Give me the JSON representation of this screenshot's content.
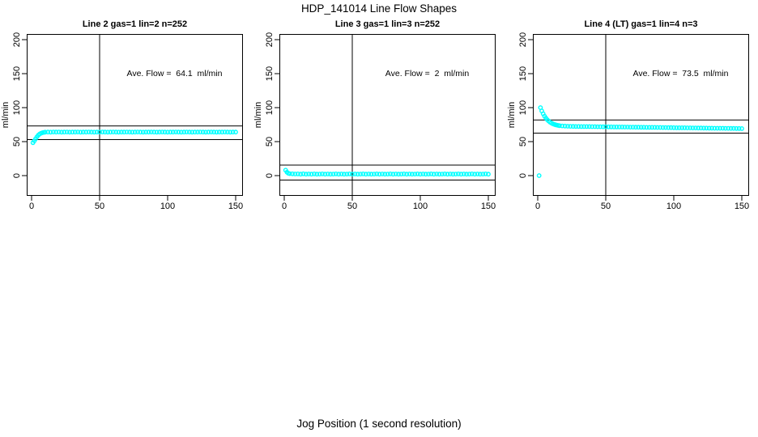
{
  "title": "HDP_141014  Line Flow Shapes",
  "xlabel": "Jog Position (1 second resolution)",
  "point_color": "#00ffff",
  "line_color": "#000000",
  "background_color": "#ffffff",
  "chart_data": [
    {
      "type": "scatter",
      "title": "Line 2 gas=1 lin=2 n=252",
      "annotation": "Ave. Flow =  64.1  ml/min",
      "ave_flow_ml_min": 64.1,
      "n": 252,
      "ylabel": "ml/min",
      "x_ticks": [
        0,
        50,
        100,
        150
      ],
      "y_ticks": [
        0,
        50,
        100,
        150,
        200
      ],
      "xlim": [
        -4,
        155
      ],
      "ylim": [
        -30,
        208
      ],
      "vline_x": 50,
      "ref_lines_y": [
        73,
        53
      ],
      "grid": false,
      "points": [
        [
          1,
          48.5
        ],
        [
          2,
          51.2
        ],
        [
          3,
          54.3
        ],
        [
          4,
          57.2
        ],
        [
          5,
          59.6
        ],
        [
          6,
          61.3
        ],
        [
          7,
          62.4
        ],
        [
          8,
          63.1
        ],
        [
          9,
          63.6
        ],
        [
          10,
          63.9
        ],
        [
          12,
          64.1
        ],
        [
          14,
          63.9
        ],
        [
          16,
          64.2
        ],
        [
          18,
          64.0
        ],
        [
          20,
          64.2
        ],
        [
          22,
          63.9
        ],
        [
          24,
          64.1
        ],
        [
          26,
          64.2
        ],
        [
          28,
          63.9
        ],
        [
          30,
          64.1
        ],
        [
          32,
          64.0
        ],
        [
          34,
          64.2
        ],
        [
          36,
          63.9
        ],
        [
          38,
          64.1
        ],
        [
          40,
          64.0
        ],
        [
          42,
          64.2
        ],
        [
          44,
          64.0
        ],
        [
          46,
          63.9
        ],
        [
          48,
          64.1
        ],
        [
          50,
          64.0
        ],
        [
          52,
          64.2
        ],
        [
          54,
          64.0
        ],
        [
          56,
          63.9
        ],
        [
          58,
          64.1
        ],
        [
          60,
          64.2
        ],
        [
          62,
          64.0
        ],
        [
          64,
          63.9
        ],
        [
          66,
          64.1
        ],
        [
          68,
          64.0
        ],
        [
          70,
          64.2
        ],
        [
          72,
          64.0
        ],
        [
          74,
          63.9
        ],
        [
          76,
          64.1
        ],
        [
          78,
          64.2
        ],
        [
          80,
          64.0
        ],
        [
          82,
          63.9
        ],
        [
          84,
          64.1
        ],
        [
          86,
          64.0
        ],
        [
          88,
          64.2
        ],
        [
          90,
          64.0
        ],
        [
          92,
          63.9
        ],
        [
          94,
          64.1
        ],
        [
          96,
          64.2
        ],
        [
          98,
          64.0
        ],
        [
          100,
          63.9
        ],
        [
          102,
          64.1
        ],
        [
          104,
          64.0
        ],
        [
          106,
          64.2
        ],
        [
          108,
          64.0
        ],
        [
          110,
          63.9
        ],
        [
          112,
          64.1
        ],
        [
          114,
          64.2
        ],
        [
          116,
          64.0
        ],
        [
          118,
          63.9
        ],
        [
          120,
          64.1
        ],
        [
          122,
          64.0
        ],
        [
          124,
          64.2
        ],
        [
          126,
          64.0
        ],
        [
          128,
          63.9
        ],
        [
          130,
          64.1
        ],
        [
          132,
          64.2
        ],
        [
          134,
          64.0
        ],
        [
          136,
          63.9
        ],
        [
          138,
          64.1
        ],
        [
          140,
          64.0
        ],
        [
          142,
          64.2
        ],
        [
          144,
          64.0
        ],
        [
          146,
          63.9
        ],
        [
          148,
          64.1
        ],
        [
          150,
          64.0
        ]
      ]
    },
    {
      "type": "scatter",
      "title": "Line 3 gas=1 lin=3 n=252",
      "annotation": "Ave. Flow =  2  ml/min",
      "ave_flow_ml_min": 2,
      "n": 252,
      "ylabel": "ml/min",
      "x_ticks": [
        0,
        50,
        100,
        150
      ],
      "y_ticks": [
        0,
        50,
        100,
        150,
        200
      ],
      "xlim": [
        -4,
        155
      ],
      "ylim": [
        -30,
        208
      ],
      "vline_x": 50,
      "ref_lines_y": [
        15.5,
        -6.5
      ],
      "grid": false,
      "points": [
        [
          1,
          8
        ],
        [
          2,
          5
        ],
        [
          3,
          3.5
        ],
        [
          4,
          2.9
        ],
        [
          6,
          2.6
        ],
        [
          8,
          2.4
        ],
        [
          10,
          2.5
        ],
        [
          12,
          2.2
        ],
        [
          14,
          2.6
        ],
        [
          16,
          2.1
        ],
        [
          18,
          2.4
        ],
        [
          20,
          2.2
        ],
        [
          22,
          2.5
        ],
        [
          24,
          2.1
        ],
        [
          26,
          2.3
        ],
        [
          28,
          2.5
        ],
        [
          30,
          2.2
        ],
        [
          32,
          2.4
        ],
        [
          34,
          2.1
        ],
        [
          36,
          2.3
        ],
        [
          38,
          2.5
        ],
        [
          40,
          2.2
        ],
        [
          42,
          2.4
        ],
        [
          44,
          2.1
        ],
        [
          46,
          2.3
        ],
        [
          48,
          2.5
        ],
        [
          50,
          2.2
        ],
        [
          52,
          2.4
        ],
        [
          54,
          2.1
        ],
        [
          56,
          2.3
        ],
        [
          58,
          2.5
        ],
        [
          60,
          2.2
        ],
        [
          62,
          2.4
        ],
        [
          64,
          2.1
        ],
        [
          66,
          2.3
        ],
        [
          68,
          2.5
        ],
        [
          70,
          2.2
        ],
        [
          72,
          2.4
        ],
        [
          74,
          2.1
        ],
        [
          76,
          2.3
        ],
        [
          78,
          2.5
        ],
        [
          80,
          2.2
        ],
        [
          82,
          2.4
        ],
        [
          84,
          2.1
        ],
        [
          86,
          2.3
        ],
        [
          88,
          2.5
        ],
        [
          90,
          2.2
        ],
        [
          92,
          2.4
        ],
        [
          94,
          2.1
        ],
        [
          96,
          2.3
        ],
        [
          98,
          2.5
        ],
        [
          100,
          2.2
        ],
        [
          102,
          2.4
        ],
        [
          104,
          2.1
        ],
        [
          106,
          2.3
        ],
        [
          108,
          2.5
        ],
        [
          110,
          2.2
        ],
        [
          112,
          2.4
        ],
        [
          114,
          2.1
        ],
        [
          116,
          2.3
        ],
        [
          118,
          2.5
        ],
        [
          120,
          2.2
        ],
        [
          122,
          2.4
        ],
        [
          124,
          2.1
        ],
        [
          126,
          2.3
        ],
        [
          128,
          2.5
        ],
        [
          130,
          2.2
        ],
        [
          132,
          2.4
        ],
        [
          134,
          2.1
        ],
        [
          136,
          2.3
        ],
        [
          138,
          2.5
        ],
        [
          140,
          2.2
        ],
        [
          142,
          2.4
        ],
        [
          144,
          2.1
        ],
        [
          146,
          2.3
        ],
        [
          148,
          2.5
        ],
        [
          150,
          2.2
        ]
      ]
    },
    {
      "type": "scatter",
      "title": "Line 4 (LT) gas=1 lin=4 n=3",
      "annotation": "Ave. Flow =  73.5  ml/min",
      "ave_flow_ml_min": 73.5,
      "n": 3,
      "ylabel": "ml/min",
      "x_ticks": [
        0,
        50,
        100,
        150
      ],
      "y_ticks": [
        0,
        50,
        100,
        150,
        200
      ],
      "xlim": [
        -4,
        155
      ],
      "ylim": [
        -30,
        208
      ],
      "vline_x": 50,
      "ref_lines_y": [
        81.8,
        62.5
      ],
      "grid": false,
      "points": [
        [
          1,
          0
        ],
        [
          2,
          100
        ],
        [
          3,
          95.1
        ],
        [
          4,
          90.9
        ],
        [
          5,
          87.4
        ],
        [
          6,
          84.6
        ],
        [
          7,
          82.2
        ],
        [
          8,
          80.3
        ],
        [
          9,
          78.7
        ],
        [
          10,
          77.4
        ],
        [
          11,
          76.3
        ],
        [
          12,
          75.5
        ],
        [
          13,
          74.8
        ],
        [
          14,
          74.3
        ],
        [
          15,
          73.8
        ],
        [
          16,
          73.5
        ],
        [
          18,
          73.1
        ],
        [
          20,
          72.8
        ],
        [
          22,
          72.6
        ],
        [
          24,
          72.5
        ],
        [
          26,
          72.4
        ],
        [
          28,
          72.3
        ],
        [
          30,
          72.3
        ],
        [
          32,
          72.2
        ],
        [
          34,
          72.2
        ],
        [
          36,
          72.1
        ],
        [
          38,
          72.1
        ],
        [
          40,
          72.0
        ],
        [
          42,
          72.0
        ],
        [
          44,
          71.9
        ],
        [
          46,
          71.9
        ],
        [
          48,
          71.8
        ],
        [
          50,
          71.8
        ],
        [
          52,
          71.7
        ],
        [
          54,
          71.7
        ],
        [
          56,
          71.6
        ],
        [
          58,
          71.6
        ],
        [
          60,
          71.5
        ],
        [
          62,
          71.5
        ],
        [
          64,
          71.4
        ],
        [
          66,
          71.4
        ],
        [
          68,
          71.3
        ],
        [
          70,
          71.3
        ],
        [
          72,
          71.2
        ],
        [
          74,
          71.2
        ],
        [
          76,
          71.1
        ],
        [
          78,
          71.1
        ],
        [
          80,
          71.0
        ],
        [
          82,
          71.0
        ],
        [
          84,
          70.9
        ],
        [
          86,
          70.9
        ],
        [
          88,
          70.8
        ],
        [
          90,
          70.8
        ],
        [
          92,
          70.7
        ],
        [
          94,
          70.7
        ],
        [
          96,
          70.6
        ],
        [
          98,
          70.6
        ],
        [
          100,
          70.5
        ],
        [
          102,
          70.4
        ],
        [
          104,
          70.4
        ],
        [
          106,
          70.3
        ],
        [
          108,
          70.3
        ],
        [
          110,
          70.2
        ],
        [
          112,
          70.2
        ],
        [
          114,
          70.1
        ],
        [
          116,
          70.1
        ],
        [
          118,
          70.0
        ],
        [
          120,
          70.0
        ],
        [
          122,
          69.9
        ],
        [
          124,
          69.9
        ],
        [
          126,
          69.8
        ],
        [
          128,
          69.8
        ],
        [
          130,
          69.7
        ],
        [
          132,
          69.7
        ],
        [
          134,
          69.6
        ],
        [
          136,
          69.6
        ],
        [
          138,
          69.5
        ],
        [
          140,
          69.5
        ],
        [
          142,
          69.4
        ],
        [
          144,
          69.4
        ],
        [
          146,
          69.3
        ],
        [
          148,
          69.3
        ],
        [
          150,
          69.2
        ]
      ]
    }
  ]
}
